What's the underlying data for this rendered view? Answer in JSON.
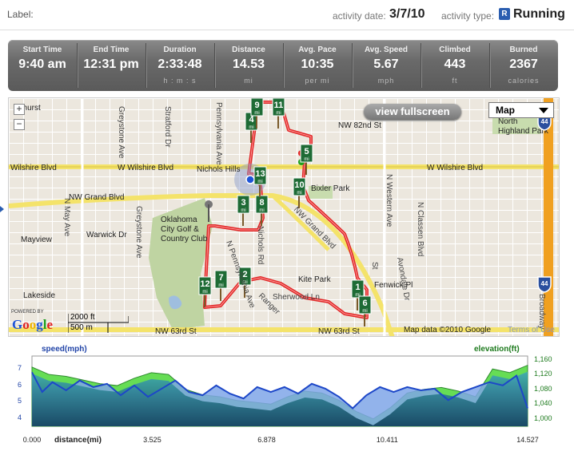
{
  "header": {
    "label": "Label:",
    "activity_date_label": "activity date:",
    "activity_date": "3/7/10",
    "activity_type_label": "activity type:",
    "activity_type_icon": "R",
    "activity_type": "Running"
  },
  "stats": [
    {
      "name": "Start Time",
      "value": "9:40 am",
      "unit": ""
    },
    {
      "name": "End Time",
      "value": "12:31 pm",
      "unit": ""
    },
    {
      "name": "Duration",
      "value": "2:33:48",
      "unit": "h : m : s"
    },
    {
      "name": "Distance",
      "value": "14.53",
      "unit": "mi"
    },
    {
      "name": "Avg. Pace",
      "value": "10:35",
      "unit": "per mi"
    },
    {
      "name": "Avg. Speed",
      "value": "5.67",
      "unit": "mph"
    },
    {
      "name": "Climbed",
      "value": "443",
      "unit": "ft"
    },
    {
      "name": "Burned",
      "value": "2367",
      "unit": "calories"
    }
  ],
  "map": {
    "fullscreen_label": "view fullscreen",
    "map_type": "Map",
    "zoom_in": "+",
    "zoom_out": "−",
    "powered_by": "POWERED BY",
    "google": "Google",
    "scale_ft": "2000 ft",
    "scale_m": "500 m",
    "attribution": "Map data ©2010 Google",
    "terms": "Terms of Use",
    "labels": {
      "lakehurst": "ehurst",
      "nichols_hills": "Nichols Hills",
      "w_wilshire_left": "Wilshire Blvd",
      "w_wilshire_mid": "W Wilshire Blvd",
      "w_wilshire_right": "W Wilshire Blvd",
      "nw_grand": "NW Grand Blvd",
      "nw_82nd": "NW 82nd St",
      "north_highland": "North\nHighland Park",
      "bixler": "Bixler Park",
      "mayview": "Mayview",
      "warwick": "Warwick Dr",
      "okc_golf": "Oklahoma\nCity Golf &\nCountry Club",
      "lakeside": "Lakeside",
      "kite_park": "Kite Park",
      "fenwick": "Fenwick Pl",
      "nw_63rd_left": "NW 63rd St",
      "nw_63rd_right": "NW 63rd St",
      "greystone_top": "Greystone Ave",
      "greystone_bot": "Greystone Ave",
      "stratford": "Stratford Dr",
      "pennsylvania_top": "Pennsylvania Ave",
      "pennsylvania_bot": "N Pennsylvania Ave",
      "may_ave": "N May Ave",
      "western": "N Western Ave",
      "classen": "N Classen Blvd",
      "avondale": "Avondale Dr",
      "grand_diag": "NW Grand Blvd",
      "broadway": "Broadway",
      "ranger": "Ranger",
      "sherwood": "Sherwood Ln",
      "nichols_rd": "Nichols Rd",
      "s_st": "St",
      "interstate": "44"
    },
    "mile_markers": [
      "1",
      "2",
      "3",
      "4",
      "5",
      "6",
      "7",
      "8",
      "9",
      "10",
      "11",
      "12",
      "13"
    ],
    "mile_unit": "mi"
  },
  "chart": {
    "ylabel_left": "speed(mph)",
    "ylabel_right": "elevation(ft)",
    "xlabel": "distance(mi)",
    "x_ticks": [
      "0.000",
      "3.525",
      "6.878",
      "10.411",
      "14.527"
    ],
    "y_left_ticks": [
      "7",
      "6",
      "5",
      "4"
    ],
    "y_right_ticks": [
      "1,160",
      "1,120",
      "1,080",
      "1,040",
      "1,000"
    ]
  },
  "chart_data": {
    "type": "area",
    "title": "",
    "xlabel": "distance(mi)",
    "ylabel": "speed(mph)",
    "y2label": "elevation(ft)",
    "xlim": [
      0,
      14.527
    ],
    "ylim": [
      3.5,
      7.8
    ],
    "y2lim": [
      980,
      1170
    ],
    "series": [
      {
        "name": "speed(mph)",
        "axis": "left",
        "x": [
          0,
          0.3,
          0.6,
          1.0,
          1.4,
          1.8,
          2.2,
          2.6,
          3.0,
          3.4,
          3.8,
          4.2,
          4.6,
          5.0,
          5.4,
          5.8,
          6.2,
          6.6,
          7.0,
          7.4,
          7.8,
          8.2,
          8.6,
          9.0,
          9.4,
          9.8,
          10.2,
          10.6,
          11.0,
          11.4,
          11.8,
          12.2,
          12.6,
          13.0,
          13.4,
          13.8,
          14.2,
          14.527
        ],
        "values": [
          6.8,
          5.6,
          6.2,
          5.7,
          6.3,
          5.9,
          6.1,
          5.4,
          6.0,
          5.3,
          5.8,
          6.3,
          5.6,
          5.4,
          6.0,
          5.5,
          5.2,
          5.9,
          5.6,
          5.9,
          5.5,
          6.1,
          5.8,
          5.3,
          4.6,
          5.4,
          5.9,
          5.6,
          5.9,
          5.7,
          5.8,
          5.1,
          5.6,
          5.9,
          6.2,
          6.0,
          6.6,
          4.6
        ]
      },
      {
        "name": "elevation(ft)",
        "axis": "right",
        "x": [
          0,
          0.5,
          1.0,
          1.5,
          2.0,
          2.5,
          3.0,
          3.5,
          4.0,
          4.5,
          5.0,
          5.5,
          6.0,
          6.5,
          7.0,
          7.5,
          8.0,
          8.5,
          9.0,
          9.5,
          10.0,
          10.5,
          11.0,
          11.5,
          12.0,
          12.5,
          13.0,
          13.5,
          14.0,
          14.527
        ],
        "values": [
          1140,
          1120,
          1115,
          1105,
          1095,
          1090,
          1110,
          1125,
          1120,
          1080,
          1065,
          1060,
          1050,
          1045,
          1040,
          1060,
          1075,
          1070,
          1050,
          1020,
          1000,
          1030,
          1070,
          1080,
          1085,
          1075,
          1060,
          1135,
          1125,
          1145
        ]
      }
    ],
    "grid": false,
    "legend": "none"
  }
}
